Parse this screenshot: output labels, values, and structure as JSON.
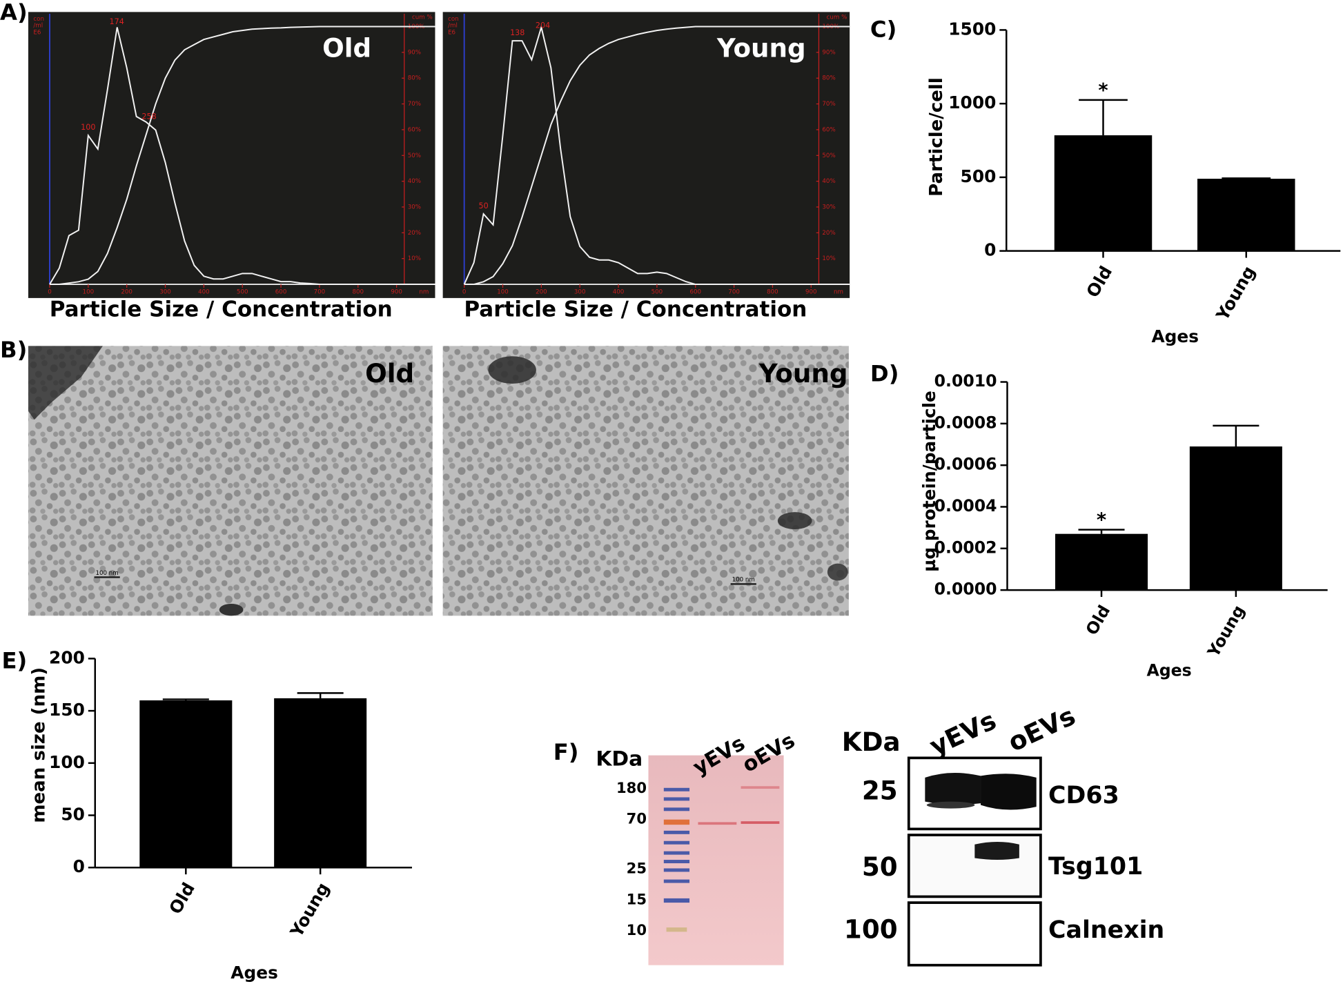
{
  "panel_labels": [
    "A)",
    "B)",
    "C)",
    "D)",
    "E)",
    "F)"
  ],
  "chart_data": [
    {
      "type": "nta",
      "title": "Old",
      "xlabel": "Particle Size / Concentration",
      "x_unit": "nm",
      "ylabel_lines": [
        "con",
        "/ml",
        "E6"
      ],
      "y2label": "cum %",
      "background": "#1d1d1b",
      "x": [
        0,
        25,
        50,
        75,
        100,
        125,
        150,
        175,
        200,
        225,
        250,
        275,
        300,
        325,
        350,
        375,
        400,
        425,
        450,
        475,
        500,
        525,
        550,
        575,
        600,
        625,
        650,
        675,
        700,
        725,
        750,
        775,
        800,
        825,
        850,
        875,
        900,
        925,
        950,
        975,
        1000
      ],
      "xlim": [
        0,
        1000
      ],
      "xticks": [
        0,
        100,
        200,
        300,
        400,
        500,
        600,
        700,
        800,
        900
      ],
      "ylim": [
        0,
        1
      ],
      "y2lim": [
        0,
        105
      ],
      "y2ticks": [
        {
          "value": 10,
          "label": "10%"
        },
        {
          "value": 20,
          "label": "20%"
        },
        {
          "value": 30,
          "label": "30%"
        },
        {
          "value": 40,
          "label": "40%"
        },
        {
          "value": 50,
          "label": "50%"
        },
        {
          "value": 60,
          "label": "60%"
        },
        {
          "value": 70,
          "label": "70%"
        },
        {
          "value": 80,
          "label": "80%"
        },
        {
          "value": 90,
          "label": "90%"
        },
        {
          "value": 100,
          "label": "100%"
        }
      ],
      "peak_labels": [
        100,
        174,
        258
      ],
      "series": [
        {
          "color": "#f2f2f2",
          "values": [
            0,
            0.06,
            0.18,
            0.2,
            0.55,
            0.5,
            0.72,
            0.95,
            0.8,
            0.62,
            0.6,
            0.57,
            0.45,
            0.3,
            0.16,
            0.07,
            0.03,
            0.02,
            0.02,
            0.03,
            0.04,
            0.04,
            0.03,
            0.02,
            0.01,
            0.01,
            0.005,
            0.003,
            0,
            0,
            0,
            0,
            0,
            0,
            0,
            0,
            0,
            0,
            0,
            0,
            0
          ]
        },
        {
          "color": "#f2f2f2",
          "axis": "y2",
          "values": [
            0,
            0,
            0.5,
            1,
            2,
            5,
            12,
            22,
            33,
            46,
            58,
            70,
            80,
            87,
            91,
            93,
            95,
            96,
            97,
            98,
            98.5,
            99,
            99.2,
            99.4,
            99.5,
            99.7,
            99.8,
            99.9,
            100,
            100,
            100,
            100,
            100,
            100,
            100,
            100,
            100,
            100,
            100,
            100,
            100
          ]
        }
      ]
    },
    {
      "type": "nta",
      "title": "Young",
      "xlabel": "Particle Size / Concentration",
      "x_unit": "nm",
      "ylabel_lines": [
        "con",
        "/ml",
        "E6"
      ],
      "y2label": "cum %",
      "background": "#1d1d1b",
      "x": [
        0,
        25,
        50,
        75,
        100,
        125,
        150,
        175,
        200,
        225,
        250,
        275,
        300,
        325,
        350,
        375,
        400,
        425,
        450,
        475,
        500,
        525,
        550,
        575,
        600,
        625,
        650,
        675,
        700,
        725,
        750,
        775,
        800,
        825,
        850,
        875,
        900,
        925,
        950,
        975,
        1000
      ],
      "xlim": [
        0,
        1000
      ],
      "xticks": [
        0,
        100,
        200,
        300,
        400,
        500,
        600,
        700,
        800,
        900
      ],
      "ylim": [
        0,
        1
      ],
      "y2lim": [
        0,
        105
      ],
      "y2ticks": [
        {
          "value": 10,
          "label": "10%"
        },
        {
          "value": 20,
          "label": "20%"
        },
        {
          "value": 30,
          "label": "30%"
        },
        {
          "value": 40,
          "label": "40%"
        },
        {
          "value": 50,
          "label": "50%"
        },
        {
          "value": 60,
          "label": "60%"
        },
        {
          "value": 70,
          "label": "70%"
        },
        {
          "value": 80,
          "label": "80%"
        },
        {
          "value": 90,
          "label": "90%"
        },
        {
          "value": 100,
          "label": "100%"
        }
      ],
      "peak_labels": [
        50,
        138,
        204
      ],
      "series": [
        {
          "color": "#f2f2f2",
          "values": [
            0,
            0.08,
            0.26,
            0.22,
            0.55,
            0.9,
            0.9,
            0.83,
            0.95,
            0.8,
            0.5,
            0.25,
            0.14,
            0.1,
            0.09,
            0.09,
            0.08,
            0.06,
            0.04,
            0.04,
            0.045,
            0.04,
            0.025,
            0.01,
            0,
            0,
            0,
            0,
            0,
            0,
            0,
            0,
            0,
            0,
            0,
            0,
            0,
            0,
            0,
            0,
            0
          ]
        },
        {
          "color": "#f2f2f2",
          "axis": "y2",
          "values": [
            0,
            0,
            1,
            3,
            8,
            15,
            26,
            38,
            50,
            62,
            71,
            79,
            85,
            89,
            91.5,
            93.5,
            95,
            96,
            97,
            97.8,
            98.5,
            99,
            99.4,
            99.7,
            100,
            100,
            100,
            100,
            100,
            100,
            100,
            100,
            100,
            100,
            100,
            100,
            100,
            100,
            100,
            100,
            100
          ]
        }
      ]
    },
    {
      "type": "bar",
      "ylabel": "Particle/cell",
      "xlabel": "Ages",
      "categories": [
        "Old",
        "Young"
      ],
      "values": [
        785,
        490
      ],
      "errors": [
        240,
        3
      ],
      "significance": [
        "*",
        null
      ],
      "color": "#000000",
      "ylim": [
        0,
        1500
      ],
      "yticks": [
        0,
        500,
        1000,
        1500
      ]
    },
    {
      "type": "bar",
      "ylabel": "µg protein/particle",
      "xlabel": "Ages",
      "categories": [
        "Old",
        "Young"
      ],
      "values": [
        0.00027,
        0.00069
      ],
      "errors": [
        2e-05,
        0.0001
      ],
      "significance": [
        "*",
        null
      ],
      "color": "#000000",
      "ylim": [
        0,
        0.001
      ],
      "yticks": [
        {
          "value": 0,
          "label": "0.0000"
        },
        {
          "value": 0.0002,
          "label": "0.0002"
        },
        {
          "value": 0.0004,
          "label": "0.0004"
        },
        {
          "value": 0.0006,
          "label": "0.0006"
        },
        {
          "value": 0.0008,
          "label": "0.0008"
        },
        {
          "value": 0.001,
          "label": "0.0010"
        }
      ]
    },
    {
      "type": "bar",
      "ylabel": "mean size (nm)",
      "xlabel": "Ages",
      "categories": [
        "Old",
        "Young"
      ],
      "values": [
        160,
        162
      ],
      "errors": [
        1,
        5
      ],
      "significance": [
        null,
        null
      ],
      "color": "#000000",
      "ylim": [
        0,
        200
      ],
      "yticks": [
        0,
        50,
        100,
        150,
        200
      ]
    }
  ],
  "tem_images": [
    {
      "label": "Old",
      "scale_bar": "100 nm"
    },
    {
      "label": "Young",
      "scale_bar": "100 nm"
    }
  ],
  "gel": {
    "unit": "KDa",
    "markers": [
      "180",
      "70",
      "25",
      "15",
      "10"
    ],
    "lanes": [
      "yEVs",
      "oEVs"
    ]
  },
  "western_blot": {
    "unit": "KDa",
    "lanes": [
      "yEVs",
      "oEVs"
    ],
    "rows": [
      {
        "kda": "25",
        "protein": "CD63"
      },
      {
        "kda": "50",
        "protein": "Tsg101"
      },
      {
        "kda": "100",
        "protein": "Calnexin"
      }
    ]
  }
}
